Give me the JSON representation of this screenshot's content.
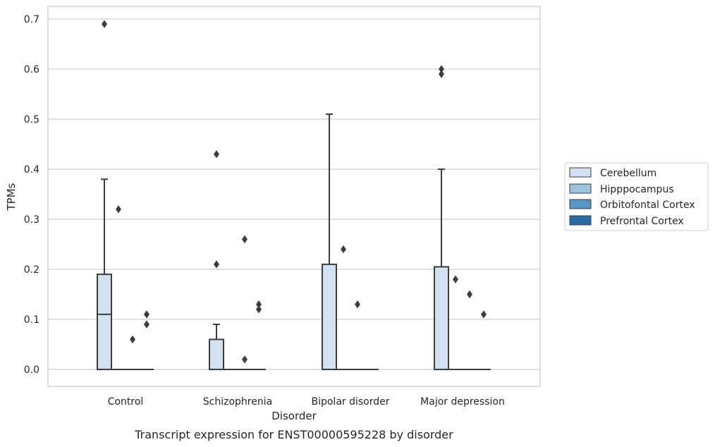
{
  "chart_data": {
    "type": "box",
    "title": "Transcript expression for ENST00000595228 by disorder",
    "xlabel": "Disorder",
    "ylabel": "TPMs",
    "ylim": [
      -0.035,
      0.725
    ],
    "yticks": [
      0.0,
      0.1,
      0.2,
      0.3,
      0.4,
      0.5,
      0.6,
      0.7
    ],
    "ytick_labels": [
      "0.0",
      "0.1",
      "0.2",
      "0.3",
      "0.4",
      "0.5",
      "0.6",
      "0.7"
    ],
    "categories": [
      "Control",
      "Schizophrenia",
      "Bipolar disorder",
      "Major depression"
    ],
    "grid": "horizontal",
    "legend": {
      "placement": "right",
      "entries": [
        "Cerebellum",
        "Hipppocampus",
        "Orbitofontal Cortex",
        "Prefrontal Cortex"
      ]
    },
    "colors": {
      "Cerebellum": "#d3e1f0",
      "Hipppocampus": "#9dc3df",
      "Orbitofontal Cortex": "#5895c4",
      "Prefrontal Cortex": "#2c6aa6",
      "box_edge": "#3d3d3d",
      "grid": "#cfcfcf",
      "frame": "#cccccc"
    },
    "series": [
      {
        "name": "Cerebellum",
        "boxes": [
          {
            "q1": 0.0,
            "median": 0.11,
            "q3": 0.19,
            "whislo": 0.0,
            "whishi": 0.38,
            "fliers": [
              0.69
            ]
          },
          {
            "q1": 0.0,
            "median": 0.0,
            "q3": 0.06,
            "whislo": 0.0,
            "whishi": 0.09,
            "fliers": [
              0.21,
              0.43
            ]
          },
          {
            "q1": 0.0,
            "median": 0.0,
            "q3": 0.21,
            "whislo": 0.0,
            "whishi": 0.51,
            "fliers": []
          },
          {
            "q1": 0.0,
            "median": 0.0,
            "q3": 0.205,
            "whislo": 0.0,
            "whishi": 0.4,
            "fliers": [
              0.59,
              0.6
            ]
          }
        ]
      },
      {
        "name": "Hipppocampus",
        "boxes": [
          {
            "q1": 0.0,
            "median": 0.0,
            "q3": 0.0,
            "whislo": 0.0,
            "whishi": 0.0,
            "fliers": [
              0.32
            ]
          },
          {
            "q1": 0.0,
            "median": 0.0,
            "q3": 0.0,
            "whislo": 0.0,
            "whishi": 0.0,
            "fliers": []
          },
          {
            "q1": 0.0,
            "median": 0.0,
            "q3": 0.0,
            "whislo": 0.0,
            "whishi": 0.0,
            "fliers": [
              0.24
            ]
          },
          {
            "q1": 0.0,
            "median": 0.0,
            "q3": 0.0,
            "whislo": 0.0,
            "whishi": 0.0,
            "fliers": [
              0.18
            ]
          }
        ]
      },
      {
        "name": "Orbitofontal Cortex",
        "boxes": [
          {
            "q1": 0.0,
            "median": 0.0,
            "q3": 0.0,
            "whislo": 0.0,
            "whishi": 0.0,
            "fliers": [
              0.06
            ]
          },
          {
            "q1": 0.0,
            "median": 0.0,
            "q3": 0.0,
            "whislo": 0.0,
            "whishi": 0.0,
            "fliers": [
              0.26,
              0.02
            ]
          },
          {
            "q1": 0.0,
            "median": 0.0,
            "q3": 0.0,
            "whislo": 0.0,
            "whishi": 0.0,
            "fliers": [
              0.13
            ]
          },
          {
            "q1": 0.0,
            "median": 0.0,
            "q3": 0.0,
            "whislo": 0.0,
            "whishi": 0.0,
            "fliers": [
              0.15
            ]
          }
        ]
      },
      {
        "name": "Prefrontal Cortex",
        "boxes": [
          {
            "q1": 0.0,
            "median": 0.0,
            "q3": 0.0,
            "whislo": 0.0,
            "whishi": 0.0,
            "fliers": [
              0.09,
              0.11
            ]
          },
          {
            "q1": 0.0,
            "median": 0.0,
            "q3": 0.0,
            "whislo": 0.0,
            "whishi": 0.0,
            "fliers": [
              0.12,
              0.13
            ]
          },
          {
            "q1": 0.0,
            "median": 0.0,
            "q3": 0.0,
            "whislo": 0.0,
            "whishi": 0.0,
            "fliers": []
          },
          {
            "q1": 0.0,
            "median": 0.0,
            "q3": 0.0,
            "whislo": 0.0,
            "whishi": 0.0,
            "fliers": [
              0.11
            ]
          }
        ]
      }
    ]
  }
}
